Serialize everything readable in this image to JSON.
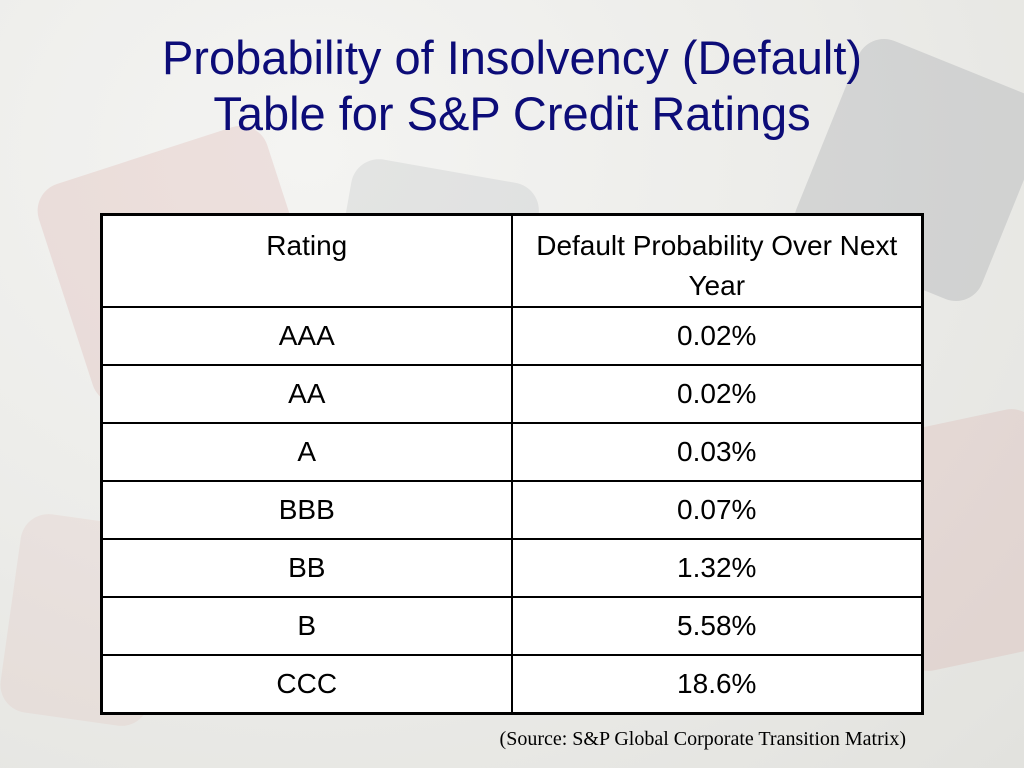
{
  "title": {
    "line1": "Probability of Insolvency (Default)",
    "line2": "Table for S&P Credit Ratings"
  },
  "table": {
    "headers": [
      "Rating",
      "Default Probability Over Next Year"
    ],
    "rows": [
      {
        "rating": "AAA",
        "probability": "0.02%"
      },
      {
        "rating": "AA",
        "probability": "0.02%"
      },
      {
        "rating": "A",
        "probability": "0.03%"
      },
      {
        "rating": "BBB",
        "probability": "0.07%"
      },
      {
        "rating": "BB",
        "probability": "1.32%"
      },
      {
        "rating": "B",
        "probability": "5.58%"
      },
      {
        "rating": "CCC",
        "probability": "18.6%"
      }
    ]
  },
  "source": "(Source: S&P Global Corporate Transition Matrix)",
  "colors": {
    "title": "#0c0c78",
    "table_border": "#000000",
    "table_background": "#ffffff"
  }
}
